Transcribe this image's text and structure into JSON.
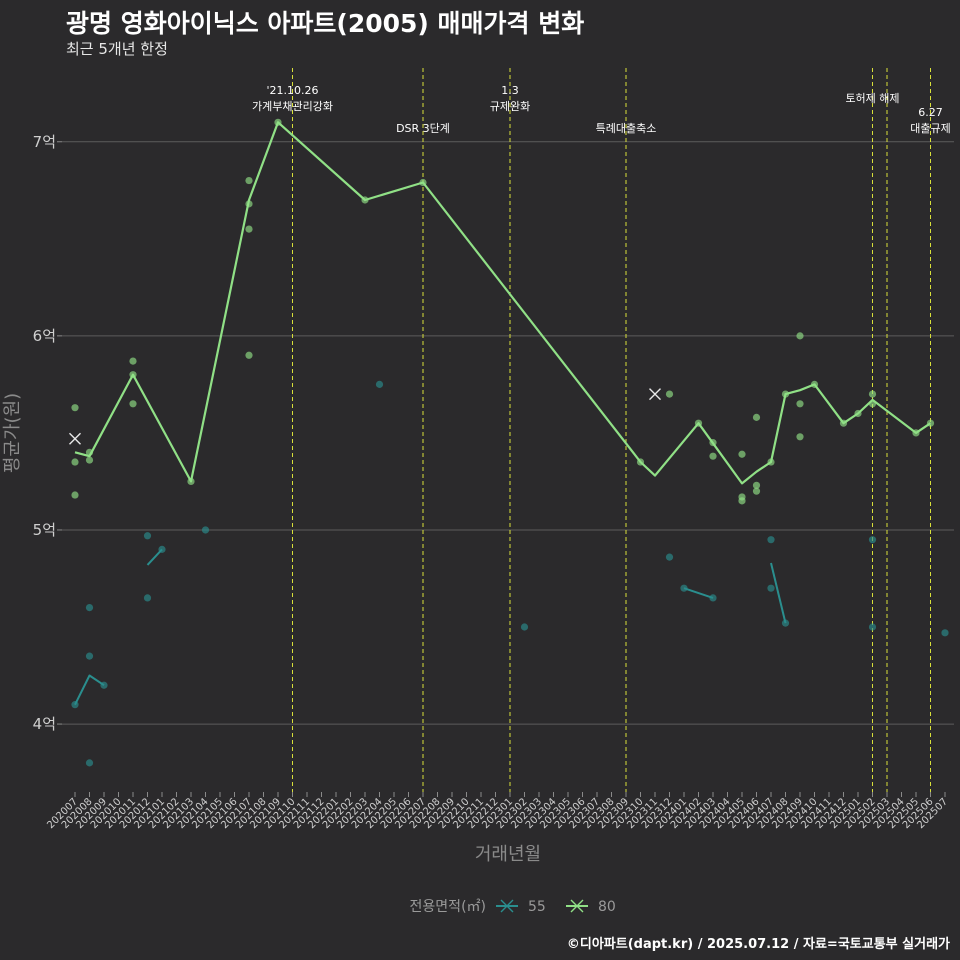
{
  "title": "광명 영화아이닉스 아파트(2005) 매매가격 변화",
  "subtitle": "최근 5개년 한정",
  "caption": "©디아파트(dapt.kr) / 2025.07.12 / 자료=국토교통부 실거래가",
  "chart_data": {
    "type": "line",
    "xlabel": "거래년월",
    "ylabel": "평균가(원)",
    "x_ticks": [
      "202007",
      "202008",
      "202009",
      "202010",
      "202011",
      "202012",
      "202101",
      "202102",
      "202103",
      "202104",
      "202105",
      "202106",
      "202107",
      "202108",
      "202109",
      "202110",
      "202111",
      "202112",
      "202201",
      "202202",
      "202203",
      "202204",
      "202205",
      "202206",
      "202207",
      "202208",
      "202209",
      "202210",
      "202211",
      "202212",
      "202301",
      "202302",
      "202303",
      "202304",
      "202305",
      "202306",
      "202307",
      "202308",
      "202309",
      "202310",
      "202311",
      "202312",
      "202401",
      "202402",
      "202403",
      "202404",
      "202405",
      "202406",
      "202407",
      "202408",
      "202409",
      "202410",
      "202411",
      "202412",
      "202501",
      "202502",
      "202503",
      "202504",
      "202505",
      "202506",
      "202507"
    ],
    "y_ticks": [
      {
        "value": 4.0,
        "label": "4억"
      },
      {
        "value": 5.0,
        "label": "5억"
      },
      {
        "value": 6.0,
        "label": "6억"
      },
      {
        "value": 7.0,
        "label": "7억"
      }
    ],
    "ylim": [
      3.65,
      7.38
    ],
    "legend": {
      "title": "전용면적(㎡)",
      "position": "bottom"
    },
    "series": [
      {
        "name": "55",
        "color": "#2a8e8e",
        "segments": [
          [
            [
              "202007",
              4.1
            ],
            [
              "202008",
              4.25
            ],
            [
              "202009",
              4.2
            ]
          ],
          [
            [
              "202012",
              4.82
            ],
            [
              "202101",
              4.9
            ]
          ],
          [
            [
              "202401",
              4.7
            ],
            [
              "202403",
              4.65
            ]
          ],
          [
            [
              "202407",
              4.83
            ],
            [
              "202408",
              4.52
            ]
          ]
        ],
        "points": [
          [
            "202007",
            4.1
          ],
          [
            "202008",
            4.6
          ],
          [
            "202008",
            4.35
          ],
          [
            "202008",
            3.8
          ],
          [
            "202009",
            4.2
          ],
          [
            "202012",
            4.97
          ],
          [
            "202012",
            4.65
          ],
          [
            "202101",
            4.9
          ],
          [
            "202104",
            5.0
          ],
          [
            "202204",
            5.75
          ],
          [
            "202302",
            4.5
          ],
          [
            "202312",
            4.86
          ],
          [
            "202401",
            4.7
          ],
          [
            "202403",
            4.65
          ],
          [
            "202407",
            4.95
          ],
          [
            "202407",
            4.7
          ],
          [
            "202408",
            4.52
          ],
          [
            "202502",
            4.95
          ],
          [
            "202502",
            4.5
          ],
          [
            "202507",
            4.47
          ]
        ],
        "markers_x": [
          [
            "202311",
            5.7
          ]
        ]
      },
      {
        "name": "80",
        "color": "#90e086",
        "line": [
          [
            "202007",
            5.4
          ],
          [
            "202008",
            5.38
          ],
          [
            "202011",
            5.8
          ],
          [
            "202103",
            5.25
          ],
          [
            "202107",
            6.7
          ],
          [
            "202109",
            7.1
          ],
          [
            "202203",
            6.7
          ],
          [
            "202207",
            6.79
          ],
          [
            "202310",
            5.35
          ],
          [
            "202311",
            5.28
          ],
          [
            "202402",
            5.55
          ],
          [
            "202405",
            5.24
          ],
          [
            "202406",
            5.3
          ],
          [
            "202407",
            5.35
          ],
          [
            "202408",
            5.7
          ],
          [
            "202409",
            5.72
          ],
          [
            "202410",
            5.75
          ],
          [
            "202412",
            5.55
          ],
          [
            "202501",
            5.6
          ],
          [
            "202502",
            5.67
          ],
          [
            "202505",
            5.5
          ],
          [
            "202506",
            5.55
          ]
        ],
        "points": [
          [
            "202007",
            5.63
          ],
          [
            "202007",
            5.35
          ],
          [
            "202007",
            5.18
          ],
          [
            "202008",
            5.4
          ],
          [
            "202008",
            5.36
          ],
          [
            "202011",
            5.87
          ],
          [
            "202011",
            5.8
          ],
          [
            "202011",
            5.65
          ],
          [
            "202103",
            5.25
          ],
          [
            "202107",
            6.8
          ],
          [
            "202107",
            6.68
          ],
          [
            "202107",
            6.55
          ],
          [
            "202107",
            5.9
          ],
          [
            "202109",
            7.1
          ],
          [
            "202203",
            6.7
          ],
          [
            "202207",
            6.79
          ],
          [
            "202310",
            5.35
          ],
          [
            "202312",
            5.7
          ],
          [
            "202402",
            5.55
          ],
          [
            "202403",
            5.45
          ],
          [
            "202403",
            5.38
          ],
          [
            "202405",
            5.39
          ],
          [
            "202405",
            5.17
          ],
          [
            "202405",
            5.15
          ],
          [
            "202406",
            5.58
          ],
          [
            "202406",
            5.23
          ],
          [
            "202406",
            5.2
          ],
          [
            "202407",
            5.35
          ],
          [
            "202408",
            5.7
          ],
          [
            "202409",
            6.0
          ],
          [
            "202409",
            5.65
          ],
          [
            "202409",
            5.48
          ],
          [
            "202410",
            5.75
          ],
          [
            "202412",
            5.55
          ],
          [
            "202501",
            5.6
          ],
          [
            "202502",
            5.7
          ],
          [
            "202502",
            5.65
          ],
          [
            "202505",
            5.5
          ],
          [
            "202506",
            5.55
          ]
        ],
        "markers_x": [
          [
            "202007",
            5.47
          ]
        ]
      }
    ],
    "vlines": [
      {
        "x": "202110",
        "label": [
          "'21.10.26",
          "가계부채관리강화"
        ],
        "level": 0
      },
      {
        "x": "202207",
        "label": [
          "DSR 3단계"
        ],
        "level": 1
      },
      {
        "x": "202301",
        "label": [
          "1.3",
          "규제완화"
        ],
        "level": 0
      },
      {
        "x": "202309",
        "label": [
          "특례대출축소"
        ],
        "level": 1
      },
      {
        "x": "202502",
        "label": [
          "토허제 해제"
        ],
        "level": 0
      },
      {
        "x": "202503",
        "label": [],
        "level": 0
      },
      {
        "x": "202506",
        "label": [
          "6.27",
          "대출규제"
        ],
        "level": 1
      }
    ]
  }
}
